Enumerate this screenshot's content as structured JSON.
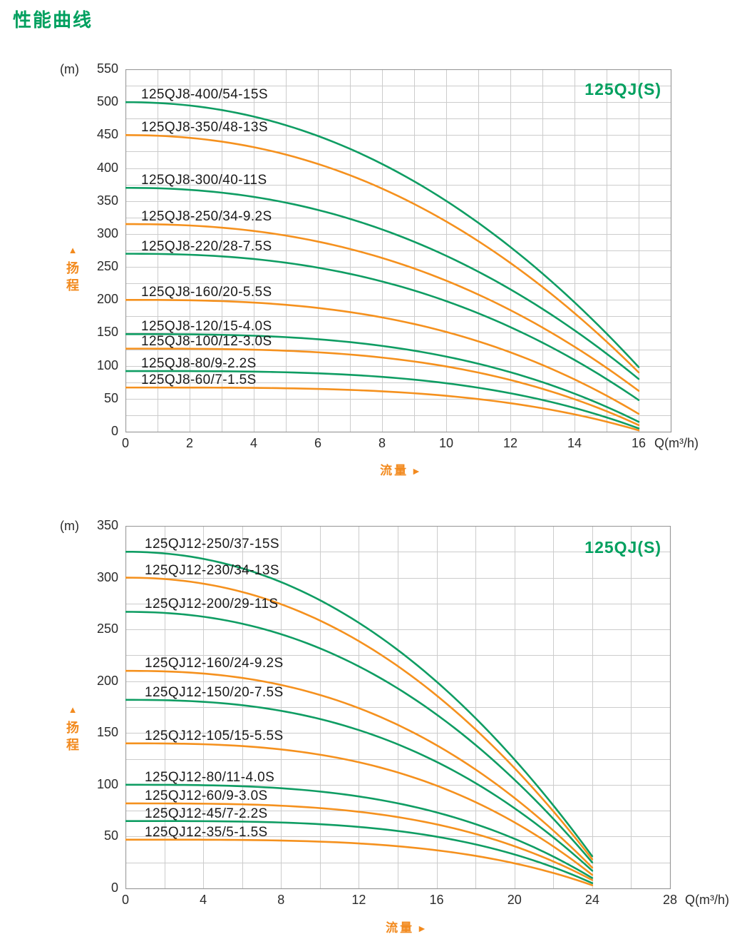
{
  "page": {
    "title": "性能曲线"
  },
  "colors": {
    "green": "#0f9d63",
    "orange": "#f5911e",
    "title_green": "#00a05f",
    "axis_orange": "#f28a1e",
    "grid": "#cccccc",
    "frame": "#9b9b9b",
    "label_text": "#1a1a1a",
    "tick_text": "#2b2b2b"
  },
  "chart_data": [
    {
      "type": "line",
      "title_badge": "125QJ(S)",
      "y_unit": "(m)",
      "x_unit": "Q(m³/h)",
      "x_axis_title": "流量",
      "x_axis_arrow": "►",
      "y_axis_title": "扬程",
      "y_axis_marker": "▲",
      "x_ticks": [
        0,
        2,
        4,
        6,
        8,
        10,
        12,
        14,
        16
      ],
      "x_grid_step": 1,
      "x_grid_max": 17,
      "y_max": 550,
      "y_tick_step": 50,
      "y_grid_step": 25,
      "q_end": 16,
      "series": [
        {
          "label": "125QJ8-400/54-15S",
          "color": "green",
          "h0": 500,
          "h_end": 98,
          "exp": 2.1
        },
        {
          "label": "125QJ8-350/48-13S",
          "color": "orange",
          "h0": 450,
          "h_end": 90,
          "exp": 2.15
        },
        {
          "label": "125QJ8-300/40-11S",
          "color": "green",
          "h0": 370,
          "h_end": 80,
          "exp": 2.2
        },
        {
          "label": "125QJ8-250/34-9.2S",
          "color": "orange",
          "h0": 315,
          "h_end": 62,
          "exp": 2.3
        },
        {
          "label": "125QJ8-220/28-7.5S",
          "color": "green",
          "h0": 270,
          "h_end": 48,
          "exp": 2.4
        },
        {
          "label": "125QJ8-160/20-5.5S",
          "color": "orange",
          "h0": 200,
          "h_end": 27,
          "exp": 2.7
        },
        {
          "label": "125QJ8-120/15-4.0S",
          "color": "green",
          "h0": 148,
          "h_end": 15,
          "exp": 2.9
        },
        {
          "label": "125QJ8-100/12-3.0S",
          "color": "orange",
          "h0": 126,
          "h_end": 10,
          "exp": 3.1
        },
        {
          "label": "125QJ8-80/9-2.2S",
          "color": "green",
          "h0": 92,
          "h_end": 5,
          "exp": 3.3
        },
        {
          "label": "125QJ8-60/7-1.5S",
          "color": "orange",
          "h0": 67,
          "h_end": 2,
          "exp": 3.5
        }
      ]
    },
    {
      "type": "line",
      "title_badge": "125QJ(S)",
      "y_unit": "(m)",
      "x_unit": "Q(m³/h)",
      "x_axis_title": "流量",
      "x_axis_arrow": "►",
      "y_axis_title": "扬程",
      "y_axis_marker": "▲",
      "x_ticks": [
        0,
        4,
        8,
        12,
        16,
        20,
        24,
        28
      ],
      "x_grid_step": 2,
      "x_grid_max": 28,
      "y_max": 350,
      "y_tick_step": 50,
      "y_grid_step": 25,
      "q_end": 24,
      "series": [
        {
          "label": "125QJ12-250/37-15S",
          "color": "green",
          "h0": 325,
          "h_end": 31,
          "exp": 2.1
        },
        {
          "label": "125QJ12-230/34-13S",
          "color": "orange",
          "h0": 300,
          "h_end": 28,
          "exp": 2.15
        },
        {
          "label": "125QJ12-200/29-11S",
          "color": "green",
          "h0": 267,
          "h_end": 25,
          "exp": 2.2
        },
        {
          "label": "125QJ12-160/24-9.2S",
          "color": "orange",
          "h0": 210,
          "h_end": 20,
          "exp": 2.4
        },
        {
          "label": "125QJ12-150/20-7.5S",
          "color": "green",
          "h0": 182,
          "h_end": 17,
          "exp": 2.5
        },
        {
          "label": "125QJ12-105/15-5.5S",
          "color": "orange",
          "h0": 140,
          "h_end": 13,
          "exp": 2.8
        },
        {
          "label": "125QJ12-80/11-4.0S",
          "color": "green",
          "h0": 100,
          "h_end": 10,
          "exp": 3.0
        },
        {
          "label": "125QJ12-60/9-3.0S",
          "color": "orange",
          "h0": 82,
          "h_end": 8,
          "exp": 3.2
        },
        {
          "label": "125QJ12-45/7-2.2S",
          "color": "green",
          "h0": 65,
          "h_end": 5,
          "exp": 3.4
        },
        {
          "label": "125QJ12-35/5-1.5S",
          "color": "orange",
          "h0": 47,
          "h_end": 3,
          "exp": 3.6
        }
      ]
    }
  ]
}
